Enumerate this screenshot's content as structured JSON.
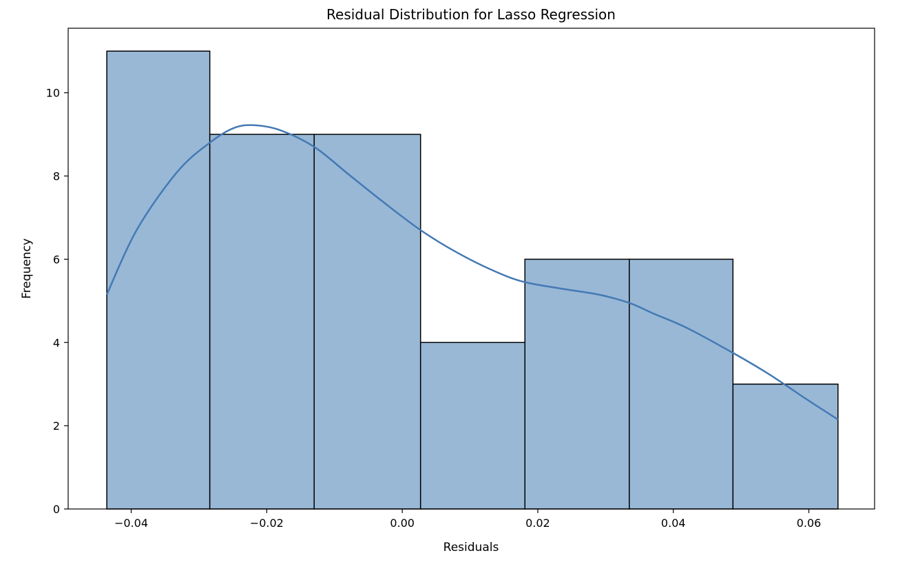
{
  "chart_data": {
    "type": "bar",
    "title": "Residual Distribution for Lasso Regression",
    "xlabel": "Residuals",
    "ylabel": "Frequency",
    "xlim": [
      -0.0493,
      0.0697
    ],
    "ylim": [
      0,
      11.55
    ],
    "bins": [
      {
        "start": -0.0436,
        "end": -0.0284,
        "count": 11
      },
      {
        "start": -0.0284,
        "end": -0.013,
        "count": 9
      },
      {
        "start": -0.013,
        "end": 0.0027,
        "count": 9
      },
      {
        "start": 0.0027,
        "end": 0.0181,
        "count": 4
      },
      {
        "start": 0.0181,
        "end": 0.0335,
        "count": 6
      },
      {
        "start": 0.0335,
        "end": 0.0488,
        "count": 6
      },
      {
        "start": 0.0488,
        "end": 0.0643,
        "count": 3
      }
    ],
    "kde": {
      "x": [
        -0.0436,
        -0.0392,
        -0.0332,
        -0.0284,
        -0.0249,
        -0.0219,
        -0.018,
        -0.013,
        -0.008,
        -0.003,
        0.0027,
        0.0082,
        0.0138,
        0.0181,
        0.024,
        0.029,
        0.0335,
        0.037,
        0.042,
        0.0488,
        0.054,
        0.06,
        0.0643
      ],
      "y": [
        5.15,
        6.7,
        8.1,
        8.8,
        9.15,
        9.22,
        9.1,
        8.7,
        8.05,
        7.4,
        6.7,
        6.15,
        5.7,
        5.45,
        5.28,
        5.15,
        4.95,
        4.7,
        4.35,
        3.75,
        3.25,
        2.6,
        2.15
      ]
    },
    "x_ticks": [
      -0.04,
      -0.02,
      0.0,
      0.02,
      0.04,
      0.06
    ],
    "x_tick_labels": [
      "−0.04",
      "−0.02",
      "0.00",
      "0.02",
      "0.04",
      "0.06"
    ],
    "y_ticks": [
      0,
      2,
      4,
      6,
      8,
      10
    ],
    "y_tick_labels": [
      "0",
      "2",
      "4",
      "6",
      "8",
      "10"
    ],
    "grid": false,
    "bar_color": "#98b8d6",
    "bar_edge_color": "#000000",
    "kde_color": "#4479b3"
  }
}
